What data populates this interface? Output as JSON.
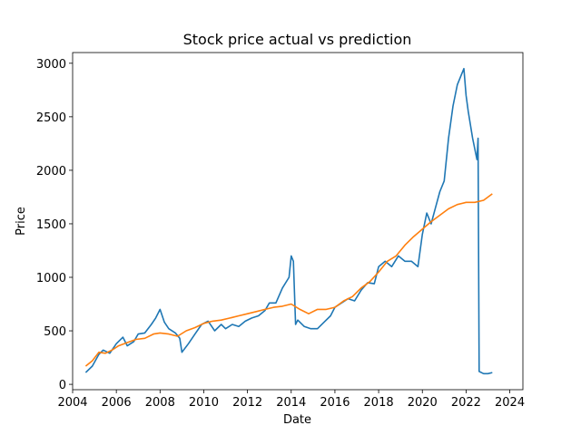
{
  "chart_data": {
    "type": "line",
    "title": "Stock price actual vs prediction",
    "xlabel": "Date",
    "ylabel": "Price",
    "xlim": [
      2004.0,
      2024.6
    ],
    "ylim": [
      -50,
      3100
    ],
    "xticks": [
      2004,
      2006,
      2008,
      2010,
      2012,
      2014,
      2016,
      2018,
      2020,
      2022,
      2024
    ],
    "yticks": [
      0,
      500,
      1000,
      1500,
      2000,
      2500,
      3000
    ],
    "grid": false,
    "legend": "none",
    "series": [
      {
        "color": "#1f77b4",
        "x": [
          2004.6,
          2004.9,
          2005.2,
          2005.4,
          2005.7,
          2006.0,
          2006.3,
          2006.5,
          2006.8,
          2007.0,
          2007.3,
          2007.6,
          2007.8,
          2008.0,
          2008.2,
          2008.4,
          2008.7,
          2008.9,
          2009.0,
          2009.3,
          2009.6,
          2009.9,
          2010.2,
          2010.5,
          2010.8,
          2011.0,
          2011.3,
          2011.6,
          2011.9,
          2012.2,
          2012.5,
          2012.8,
          2013.0,
          2013.3,
          2013.6,
          2013.9,
          2014.0,
          2014.1,
          2014.2,
          2014.3,
          2014.6,
          2014.9,
          2015.2,
          2015.5,
          2015.8,
          2016.0,
          2016.3,
          2016.6,
          2016.9,
          2017.2,
          2017.5,
          2017.8,
          2018.0,
          2018.3,
          2018.6,
          2018.9,
          2019.2,
          2019.5,
          2019.8,
          2020.0,
          2020.2,
          2020.4,
          2020.6,
          2020.8,
          2021.0,
          2021.2,
          2021.4,
          2021.6,
          2021.8,
          2021.9,
          2022.0,
          2022.1,
          2022.3,
          2022.5,
          2022.55,
          2022.6,
          2022.8,
          2023.0,
          2023.2
        ],
        "values": [
          110,
          170,
          280,
          320,
          290,
          380,
          440,
          360,
          400,
          470,
          480,
          560,
          620,
          700,
          580,
          520,
          480,
          430,
          300,
          380,
          470,
          560,
          590,
          500,
          560,
          520,
          560,
          540,
          590,
          620,
          640,
          690,
          760,
          760,
          900,
          1000,
          1200,
          1150,
          560,
          600,
          540,
          520,
          520,
          580,
          640,
          720,
          760,
          800,
          780,
          880,
          950,
          940,
          1100,
          1150,
          1100,
          1200,
          1150,
          1150,
          1100,
          1400,
          1600,
          1500,
          1650,
          1800,
          1900,
          2300,
          2600,
          2800,
          2900,
          2950,
          2700,
          2550,
          2300,
          2100,
          2300,
          120,
          100,
          100,
          110
        ]
      },
      {
        "color": "#ff7f0e",
        "x": [
          2004.6,
          2004.9,
          2005.2,
          2005.5,
          2005.8,
          2006.1,
          2006.5,
          2006.9,
          2007.3,
          2007.7,
          2008.0,
          2008.4,
          2008.8,
          2009.2,
          2009.6,
          2010.0,
          2010.4,
          2010.8,
          2011.2,
          2011.6,
          2012.0,
          2012.4,
          2012.8,
          2013.2,
          2013.6,
          2014.0,
          2014.4,
          2014.8,
          2015.2,
          2015.6,
          2016.0,
          2016.4,
          2016.8,
          2017.2,
          2017.6,
          2018.0,
          2018.4,
          2018.8,
          2019.2,
          2019.6,
          2020.0,
          2020.4,
          2020.8,
          2021.2,
          2021.6,
          2022.0,
          2022.4,
          2022.8,
          2023.2
        ],
        "values": [
          170,
          220,
          300,
          290,
          320,
          360,
          390,
          420,
          430,
          470,
          480,
          470,
          450,
          500,
          530,
          570,
          590,
          600,
          620,
          640,
          660,
          680,
          700,
          720,
          730,
          750,
          700,
          660,
          700,
          700,
          720,
          780,
          820,
          900,
          960,
          1050,
          1150,
          1200,
          1300,
          1380,
          1450,
          1520,
          1580,
          1640,
          1680,
          1700,
          1700,
          1720,
          1780
        ]
      }
    ]
  }
}
